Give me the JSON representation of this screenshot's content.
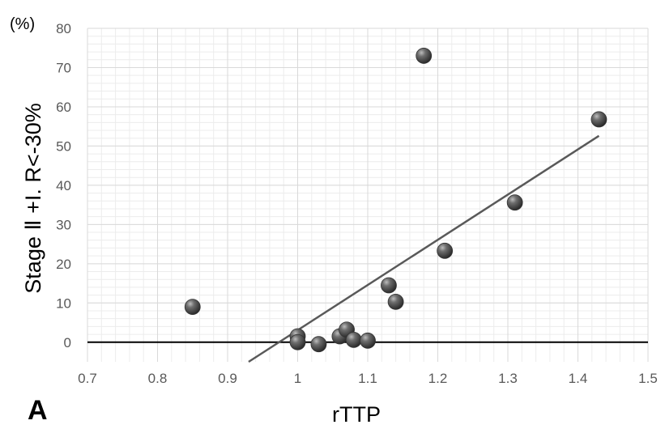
{
  "chart_data": {
    "type": "scatter",
    "panel_label": "A",
    "unit_label": "(%)",
    "xlabel": "rTTP",
    "ylabel": "Stage Ⅱ +I. R<-30%",
    "xlim": [
      0.7,
      1.5
    ],
    "ylim": [
      -5,
      80
    ],
    "xticks": [
      0.7,
      0.8,
      0.9,
      1,
      1.1,
      1.2,
      1.3,
      1.4,
      1.5
    ],
    "yticks": [
      0,
      10,
      20,
      30,
      40,
      50,
      60,
      70,
      80
    ],
    "grid": true,
    "series": [
      {
        "points": [
          {
            "x": 0.85,
            "y": 9
          },
          {
            "x": 1.0,
            "y": 1.5
          },
          {
            "x": 1.0,
            "y": 0
          },
          {
            "x": 1.03,
            "y": -0.5
          },
          {
            "x": 1.06,
            "y": 1.5
          },
          {
            "x": 1.07,
            "y": 3.2
          },
          {
            "x": 1.08,
            "y": 0.6
          },
          {
            "x": 1.1,
            "y": 0.4
          },
          {
            "x": 1.13,
            "y": 14.5
          },
          {
            "x": 1.14,
            "y": 10.3
          },
          {
            "x": 1.18,
            "y": 73
          },
          {
            "x": 1.21,
            "y": 23.3
          },
          {
            "x": 1.31,
            "y": 35.6
          },
          {
            "x": 1.43,
            "y": 56.8
          }
        ]
      }
    ],
    "trendline": {
      "type": "linear",
      "from": [
        0.93,
        -5
      ],
      "to": [
        1.43,
        52.6
      ]
    },
    "colors": {
      "marker": "#4a4a4a",
      "trendline": "#595959",
      "grid": "#d9d9d9",
      "zero_line": "#000000"
    }
  }
}
